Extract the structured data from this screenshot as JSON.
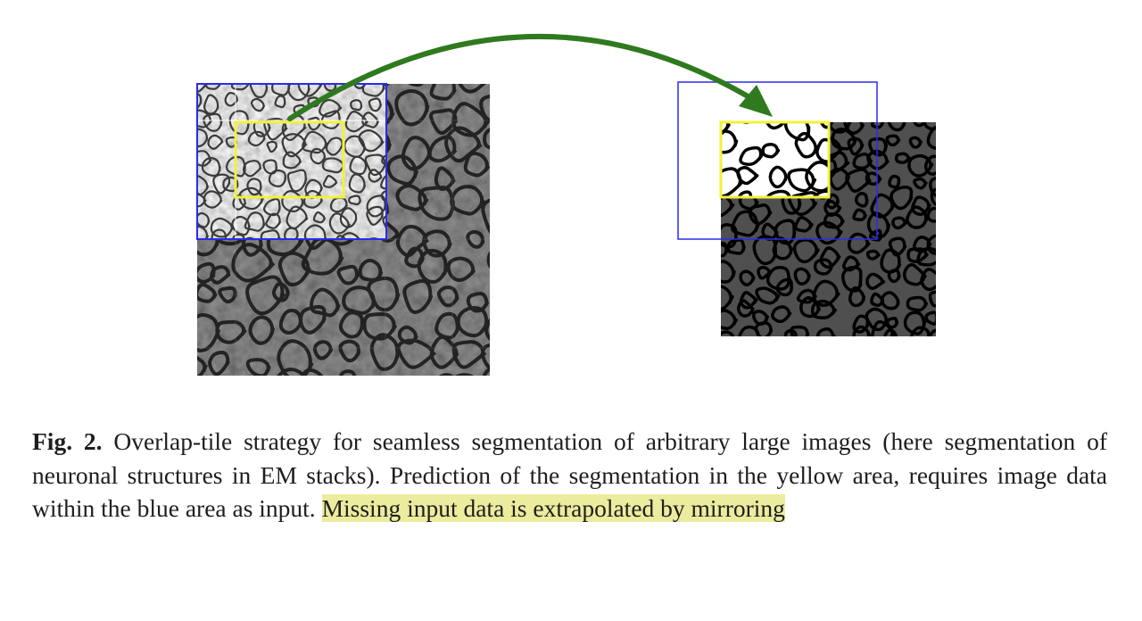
{
  "figure": {
    "colors": {
      "blue_box": "#2a2af0",
      "yellow_box": "#f2f23a",
      "arrow": "#2f7a1e",
      "em_dark": "#2e2e2e",
      "seg_gray": "#4f4f4f",
      "seg_white": "#ffffff",
      "membrane": "#000000"
    },
    "panels": {
      "left": "EM image tile with mirrored extrapolation",
      "right": "segmentation map output"
    }
  },
  "caption": {
    "label": "Fig. 2.",
    "text": " Overlap-tile strategy for seamless segmentation of arbitrary large images (here segmentation of neuronal structures in EM stacks). Prediction of the segmentation in the yellow area, requires image data within the blue area as input. ",
    "highlighted": "Missing input data is extrapolated by mirroring"
  }
}
